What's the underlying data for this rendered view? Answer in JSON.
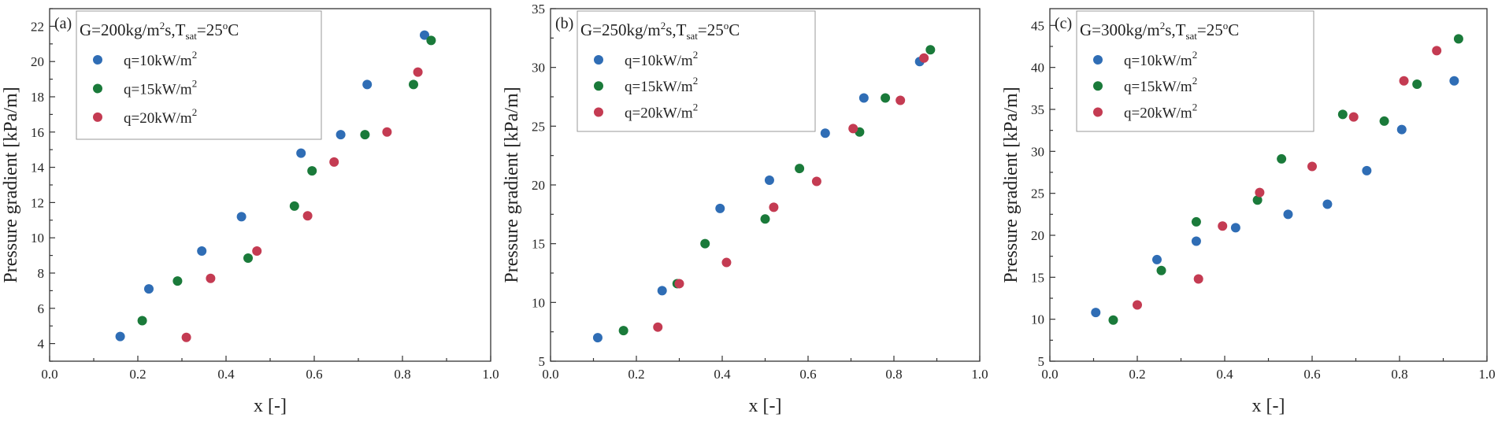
{
  "colors": {
    "q10": "#2f6db5",
    "q15": "#1a7a3a",
    "q20": "#c43b52"
  },
  "chart_data": [
    {
      "type": "scatter",
      "panel_label": "(a)",
      "legend_title": {
        "g": "G=200kg/m",
        "sq": "2",
        "s": "s,T",
        "sub": "sat",
        "eq": "=25",
        "deg": "o",
        "c": "C"
      },
      "xlabel": "x [-]",
      "ylabel": "Pressure gradient [kPa/m]",
      "xlim": [
        0.0,
        1.0
      ],
      "ylim": [
        3,
        23
      ],
      "xticks": [
        0.0,
        0.1,
        0.2,
        0.3,
        0.4,
        0.5,
        0.6,
        0.7,
        0.8,
        0.9,
        1.0
      ],
      "xtick_labels": [
        "0.0",
        "0.2",
        "0.4",
        "0.6",
        "0.8",
        "1.0"
      ],
      "xtick_label_values": [
        0.0,
        0.2,
        0.4,
        0.6,
        0.8,
        1.0
      ],
      "yticks": [
        4,
        6,
        8,
        10,
        12,
        14,
        16,
        18,
        20,
        22
      ],
      "ytick_labels": [
        "4",
        "6",
        "8",
        "10",
        "12",
        "14",
        "16",
        "18",
        "20",
        "22"
      ],
      "yminor": [
        3,
        5,
        7,
        9,
        11,
        13,
        15,
        17,
        19,
        21,
        23
      ],
      "series": [
        {
          "name": "q=10kW/m",
          "sup": "2",
          "color_key": "q10",
          "x": [
            0.16,
            0.225,
            0.345,
            0.435,
            0.57,
            0.66,
            0.72,
            0.85
          ],
          "y": [
            4.4,
            7.1,
            9.25,
            11.2,
            14.8,
            15.85,
            18.7,
            21.5
          ]
        },
        {
          "name": "q=15kW/m",
          "sup": "2",
          "color_key": "q15",
          "x": [
            0.21,
            0.29,
            0.45,
            0.555,
            0.595,
            0.715,
            0.825,
            0.865
          ],
          "y": [
            5.3,
            7.55,
            8.85,
            11.8,
            13.8,
            15.85,
            18.7,
            21.2
          ]
        },
        {
          "name": "q=20kW/m",
          "sup": "2",
          "color_key": "q20",
          "x": [
            0.31,
            0.365,
            0.47,
            0.585,
            0.645,
            0.765,
            0.835
          ],
          "y": [
            4.35,
            7.7,
            9.25,
            11.25,
            14.3,
            16.0,
            19.4
          ]
        }
      ]
    },
    {
      "type": "scatter",
      "panel_label": "(b)",
      "legend_title": {
        "g": "G=250kg/m",
        "sq": "2",
        "s": "s,T",
        "sub": "sat",
        "eq": "=25",
        "deg": "o",
        "c": "C"
      },
      "xlabel": "x [-]",
      "ylabel": "Pressure gradient [kPa/m]",
      "xlim": [
        0.0,
        1.0
      ],
      "ylim": [
        5,
        35
      ],
      "xticks": [
        0.0,
        0.1,
        0.2,
        0.3,
        0.4,
        0.5,
        0.6,
        0.7,
        0.8,
        0.9,
        1.0
      ],
      "xtick_labels": [
        "0.0",
        "0.2",
        "0.4",
        "0.6",
        "0.8",
        "1.0"
      ],
      "xtick_label_values": [
        0.0,
        0.2,
        0.4,
        0.6,
        0.8,
        1.0
      ],
      "yticks": [
        5,
        10,
        15,
        20,
        25,
        30,
        35
      ],
      "ytick_labels": [
        "5",
        "10",
        "15",
        "20",
        "25",
        "30",
        "35"
      ],
      "yminor": [
        7.5,
        12.5,
        17.5,
        22.5,
        27.5,
        32.5
      ],
      "series": [
        {
          "name": "q=10kW/m",
          "sup": "2",
          "color_key": "q10",
          "x": [
            0.11,
            0.26,
            0.395,
            0.51,
            0.64,
            0.73,
            0.86
          ],
          "y": [
            7.0,
            11.0,
            18.0,
            20.4,
            24.4,
            27.4,
            30.5
          ]
        },
        {
          "name": "q=15kW/m",
          "sup": "2",
          "color_key": "q15",
          "x": [
            0.17,
            0.295,
            0.36,
            0.5,
            0.58,
            0.72,
            0.78,
            0.885
          ],
          "y": [
            7.6,
            11.6,
            15.0,
            17.1,
            21.4,
            24.5,
            27.4,
            31.5
          ]
        },
        {
          "name": "q=20kW/m",
          "sup": "2",
          "color_key": "q20",
          "x": [
            0.25,
            0.3,
            0.41,
            0.52,
            0.62,
            0.705,
            0.815,
            0.87
          ],
          "y": [
            7.9,
            11.6,
            13.4,
            18.1,
            20.3,
            24.8,
            27.2,
            30.8
          ]
        }
      ]
    },
    {
      "type": "scatter",
      "panel_label": "(c)",
      "legend_title": {
        "g": "G=300kg/m",
        "sq": "2",
        "s": "s,T",
        "sub": "sat",
        "eq": "=25",
        "deg": "o",
        "c": "C"
      },
      "xlabel": "x [-]",
      "ylabel": "Pressure gradient [kPa/m]",
      "xlim": [
        0.0,
        1.0
      ],
      "ylim": [
        5,
        47
      ],
      "xticks": [
        0.0,
        0.1,
        0.2,
        0.3,
        0.4,
        0.5,
        0.6,
        0.7,
        0.8,
        0.9,
        1.0
      ],
      "xtick_labels": [
        "0.0",
        "0.2",
        "0.4",
        "0.6",
        "0.8",
        "1.0"
      ],
      "xtick_label_values": [
        0.0,
        0.2,
        0.4,
        0.6,
        0.8,
        1.0
      ],
      "yticks": [
        5,
        10,
        15,
        20,
        25,
        30,
        35,
        40,
        45
      ],
      "ytick_labels": [
        "5",
        "10",
        "15",
        "20",
        "25",
        "30",
        "35",
        "40",
        "45"
      ],
      "yminor": [
        7.5,
        12.5,
        17.5,
        22.5,
        27.5,
        32.5,
        37.5,
        42.5
      ],
      "series": [
        {
          "name": "q=10kW/m",
          "sup": "2",
          "color_key": "q10",
          "x": [
            0.105,
            0.245,
            0.335,
            0.425,
            0.545,
            0.635,
            0.725,
            0.805,
            0.925
          ],
          "y": [
            10.8,
            17.1,
            19.3,
            20.9,
            22.5,
            23.7,
            27.7,
            32.6,
            38.4
          ]
        },
        {
          "name": "q=15kW/m",
          "sup": "2",
          "color_key": "q15",
          "x": [
            0.145,
            0.255,
            0.335,
            0.475,
            0.53,
            0.67,
            0.765,
            0.84,
            0.935
          ],
          "y": [
            9.9,
            15.8,
            21.6,
            24.2,
            29.1,
            34.4,
            33.6,
            38.0,
            43.4
          ]
        },
        {
          "name": "q=20kW/m",
          "sup": "2",
          "color_key": "q20",
          "x": [
            0.2,
            0.34,
            0.395,
            0.48,
            0.6,
            0.695,
            0.81,
            0.885
          ],
          "y": [
            11.7,
            14.8,
            21.1,
            25.1,
            28.2,
            34.1,
            38.4,
            42.0
          ]
        }
      ]
    }
  ]
}
